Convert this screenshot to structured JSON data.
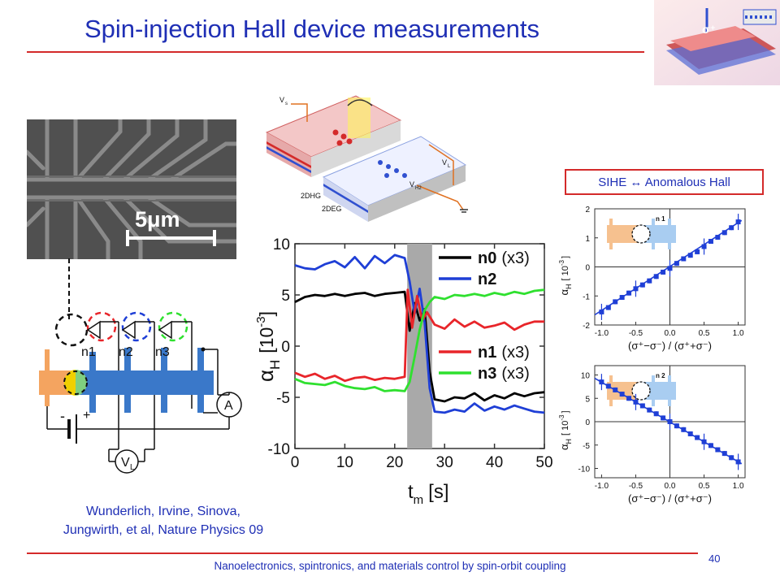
{
  "slide": {
    "title": "Spin-injection Hall device measurements",
    "sihe_box_label": "SIHE ↔ Anomalous Hall",
    "citation_line1": "Wunderlich, Irvine, Sinova,",
    "citation_line2": "Jungwirth, et al, Nature Physics 09",
    "footer": "Nanoelectronics, spintronics, and materials control by spin-orbit coupling",
    "page_number": "40"
  },
  "sem": {
    "scale_label": "5μm"
  },
  "schematic": {
    "probe_labels": [
      "n1",
      "n2",
      "n3"
    ],
    "ammeter_label": "A",
    "voltmeter_label": "V",
    "voltmeter_sub": "L",
    "minus_label": "-",
    "plus_label": "+"
  },
  "device3d": {
    "vs_label": "V",
    "vs_sub": "s",
    "vl_label": "V",
    "vl_sub": "L",
    "vh2_label": "V",
    "vh2_sub": "H2",
    "dhg_label": "2DHG",
    "deg_label": "2DEG"
  },
  "colors": {
    "title": "#1f2fb5",
    "accent_red": "#d42a2a",
    "n0": "#000000",
    "n1": "#e8252a",
    "n2": "#1f3fd6",
    "n3": "#2fe02f"
  },
  "chart_data": [
    {
      "type": "line",
      "ylabel_main": "α",
      "ylabel_sub": "H",
      "ylabel_unit": "[10",
      "ylabel_exp": "-3",
      "ylabel_close": "]",
      "xlabel_main": "t",
      "xlabel_sub": "m",
      "xlabel_unit": "[s]",
      "xlim": [
        0,
        50
      ],
      "ylim": [
        -10,
        10
      ],
      "xticks": [
        "0",
        "10",
        "20",
        "30",
        "40",
        "50"
      ],
      "yticks": [
        "10",
        "5",
        "0",
        "-5",
        "-10"
      ],
      "shaded_x_range": [
        22.5,
        27.5
      ],
      "series": [
        {
          "name": "n0",
          "note": "(x3)",
          "color": "#000000",
          "x": [
            0,
            2,
            4,
            6,
            8,
            10,
            12,
            14,
            16,
            18,
            20,
            22,
            23,
            24,
            25,
            26,
            27,
            28,
            30,
            32,
            34,
            36,
            38,
            40,
            42,
            44,
            46,
            48,
            50
          ],
          "y": [
            4.3,
            4.8,
            5.0,
            4.9,
            5.1,
            4.9,
            5.1,
            5.2,
            4.9,
            5.1,
            5.2,
            5.3,
            1.5,
            4.2,
            2.5,
            3.6,
            -2.5,
            -5.2,
            -5.4,
            -5.0,
            -5.1,
            -4.6,
            -5.3,
            -4.8,
            -5.1,
            -4.6,
            -4.9,
            -4.6,
            -4.5
          ]
        },
        {
          "name": "n2",
          "note": "",
          "color": "#1f3fd6",
          "x": [
            0,
            2,
            4,
            6,
            8,
            10,
            12,
            14,
            16,
            18,
            20,
            22,
            23,
            24,
            25,
            26,
            27,
            28,
            30,
            32,
            34,
            36,
            38,
            40,
            42,
            44,
            46,
            48,
            50
          ],
          "y": [
            7.9,
            7.6,
            7.5,
            8.0,
            8.3,
            7.7,
            8.7,
            7.6,
            8.8,
            8.1,
            8.9,
            8.6,
            6.3,
            3.2,
            5.6,
            2.3,
            -4.1,
            -6.4,
            -6.5,
            -6.2,
            -6.4,
            -5.6,
            -6.3,
            -5.9,
            -6.2,
            -5.8,
            -6.1,
            -6.4,
            -6.5
          ]
        },
        {
          "name": "n1",
          "note": "(x3)",
          "color": "#e8252a",
          "x": [
            0,
            2,
            4,
            6,
            8,
            10,
            12,
            14,
            16,
            18,
            20,
            22,
            22.6,
            23.5,
            24.5,
            25.5,
            26.5,
            28,
            30,
            32,
            34,
            36,
            38,
            40,
            42,
            44,
            46,
            48,
            50
          ],
          "y": [
            -2.6,
            -3.0,
            -2.7,
            -3.2,
            -2.9,
            -3.4,
            -3.1,
            -3.0,
            -3.3,
            -3.1,
            -3.2,
            -3.0,
            5.5,
            1.8,
            4.9,
            2.5,
            3.3,
            2.1,
            1.7,
            2.6,
            1.9,
            2.4,
            1.8,
            2.0,
            2.3,
            1.6,
            2.1,
            2.4,
            2.4
          ]
        },
        {
          "name": "n3",
          "note": "(x3)",
          "color": "#2fe02f",
          "x": [
            0,
            2,
            4,
            6,
            8,
            10,
            12,
            14,
            16,
            18,
            20,
            22,
            23,
            24,
            25,
            26,
            27,
            28,
            30,
            32,
            34,
            36,
            38,
            40,
            42,
            44,
            46,
            48,
            50
          ],
          "y": [
            -3.2,
            -3.6,
            -3.7,
            -3.8,
            -3.5,
            -3.9,
            -4.1,
            -4.2,
            -4.0,
            -4.4,
            -4.3,
            -4.4,
            -3.5,
            -1.0,
            1.6,
            3.5,
            4.3,
            4.8,
            4.6,
            5.0,
            4.9,
            5.1,
            4.9,
            5.2,
            5.0,
            5.3,
            5.1,
            5.4,
            5.5
          ]
        }
      ]
    },
    {
      "type": "scatter",
      "inset_label": "n 1",
      "ylabel_main": "α",
      "ylabel_sub": "H",
      "ylabel_unit": "[ 10",
      "ylabel_exp": "-3",
      "ylabel_close": "]",
      "xlabel": "(σ⁺−σ⁻) / (σ⁺+σ⁻)",
      "xlim": [
        -1.1,
        1.1
      ],
      "ylim": [
        -2,
        2
      ],
      "xticks": [
        "-1.0",
        "-0.5",
        "0.0",
        "0.5",
        "1.0"
      ],
      "yticks": [
        "2",
        "1",
        "0",
        "-1",
        "-2"
      ],
      "color": "#1f3fd6",
      "x": [
        -1.0,
        -0.9,
        -0.8,
        -0.7,
        -0.6,
        -0.5,
        -0.4,
        -0.3,
        -0.2,
        -0.1,
        0.0,
        0.1,
        0.2,
        0.3,
        0.4,
        0.5,
        0.6,
        0.7,
        0.8,
        0.9,
        1.0
      ],
      "y": [
        -1.55,
        -1.4,
        -1.2,
        -1.05,
        -0.9,
        -0.75,
        -0.62,
        -0.48,
        -0.33,
        -0.18,
        -0.05,
        0.12,
        0.28,
        0.4,
        0.52,
        0.7,
        0.88,
        1.02,
        1.18,
        1.35,
        1.55
      ],
      "fit_line": [
        [
          -1.1,
          -1.65
        ],
        [
          1.05,
          1.6
        ]
      ]
    },
    {
      "type": "scatter",
      "inset_label": "n 2",
      "ylabel_main": "α",
      "ylabel_sub": "H",
      "ylabel_unit": "[ 10",
      "ylabel_exp": "-3",
      "ylabel_close": "]",
      "xlabel": "(σ⁺−σ⁻) / (σ⁺+σ⁻)",
      "xlim": [
        -1.1,
        1.1
      ],
      "ylim": [
        -12,
        12
      ],
      "xticks": [
        "-1.0",
        "-0.5",
        "0.0",
        "0.5",
        "1.0"
      ],
      "yticks": [
        "10",
        "5",
        "0",
        "-5",
        "-10"
      ],
      "color": "#1f3fd6",
      "x": [
        -1.0,
        -0.9,
        -0.8,
        -0.7,
        -0.6,
        -0.5,
        -0.4,
        -0.3,
        -0.2,
        -0.1,
        0.0,
        0.1,
        0.2,
        0.3,
        0.4,
        0.5,
        0.6,
        0.7,
        0.8,
        0.9,
        1.0
      ],
      "y": [
        8.5,
        7.6,
        6.8,
        5.9,
        5.0,
        4.2,
        3.4,
        2.5,
        1.7,
        0.8,
        0.0,
        -0.9,
        -1.7,
        -2.6,
        -3.4,
        -4.3,
        -5.1,
        -6.0,
        -6.8,
        -7.7,
        -8.6
      ],
      "fit_line": [
        [
          -1.1,
          9.3
        ],
        [
          1.05,
          -9.0
        ]
      ]
    }
  ]
}
